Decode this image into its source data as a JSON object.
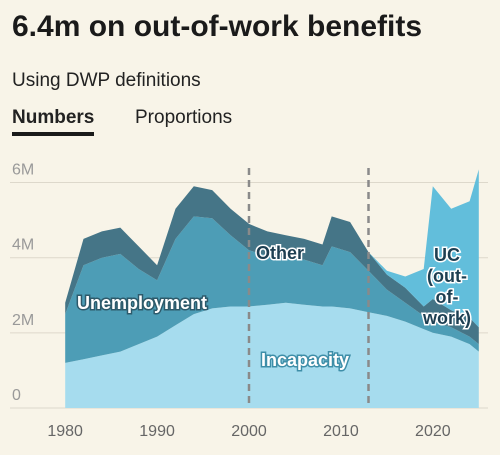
{
  "header": {
    "title": "6.4m on out-of-work benefits",
    "subtitle": "Using DWP definitions",
    "tabs": [
      "Numbers",
      "Proportions"
    ]
  },
  "chart_data": {
    "type": "stacked-area",
    "x": [
      1980,
      1982,
      1984,
      1986,
      1988,
      1990,
      1992,
      1994,
      1996,
      1998,
      2000,
      2002,
      2004,
      2006,
      2008,
      2009,
      2011,
      2013,
      2015,
      2017,
      2019,
      2020,
      2022,
      2024,
      2025
    ],
    "series": [
      {
        "name": "Incapacity",
        "color": "#a6dcee",
        "values": [
          1.2,
          1.3,
          1.4,
          1.5,
          1.7,
          1.9,
          2.2,
          2.5,
          2.65,
          2.7,
          2.7,
          2.75,
          2.8,
          2.75,
          2.7,
          2.7,
          2.65,
          2.55,
          2.45,
          2.3,
          2.1,
          2.0,
          1.9,
          1.7,
          1.5
        ]
      },
      {
        "name": "Unemployment",
        "color": "#4d9db6",
        "values": [
          1.3,
          2.5,
          2.6,
          2.6,
          2.0,
          1.5,
          2.3,
          2.6,
          2.4,
          1.9,
          1.5,
          1.3,
          1.2,
          1.2,
          1.1,
          1.6,
          1.5,
          1.1,
          0.7,
          0.5,
          0.35,
          0.3,
          0.25,
          0.2,
          0.2
        ]
      },
      {
        "name": "Other",
        "color": "#457587",
        "values": [
          0.3,
          0.7,
          0.7,
          0.7,
          0.6,
          0.4,
          0.8,
          0.8,
          0.75,
          0.7,
          0.7,
          0.65,
          0.6,
          0.55,
          0.55,
          0.8,
          0.8,
          0.5,
          0.4,
          0.4,
          0.25,
          0.6,
          0.45,
          0.5,
          0.45
        ]
      },
      {
        "name": "UC (out-of-work)",
        "color": "#62bedb",
        "values": [
          0,
          0,
          0,
          0,
          0,
          0,
          0,
          0,
          0,
          0,
          0,
          0,
          0,
          0,
          0,
          0,
          0,
          0,
          0.1,
          0.3,
          1.0,
          3.0,
          2.7,
          3.1,
          4.2
        ]
      }
    ],
    "xlim": [
      1974,
      2026
    ],
    "xticks": [
      1980,
      1990,
      2000,
      2010,
      2020
    ],
    "ylim": [
      0,
      6.6
    ],
    "yticks": [
      {
        "value": 0,
        "label": "0"
      },
      {
        "value": 2,
        "label": "2M"
      },
      {
        "value": 4,
        "label": "4M"
      },
      {
        "value": 6,
        "label": "6M"
      }
    ],
    "grid": true,
    "vlines": [
      2000,
      2013
    ]
  }
}
